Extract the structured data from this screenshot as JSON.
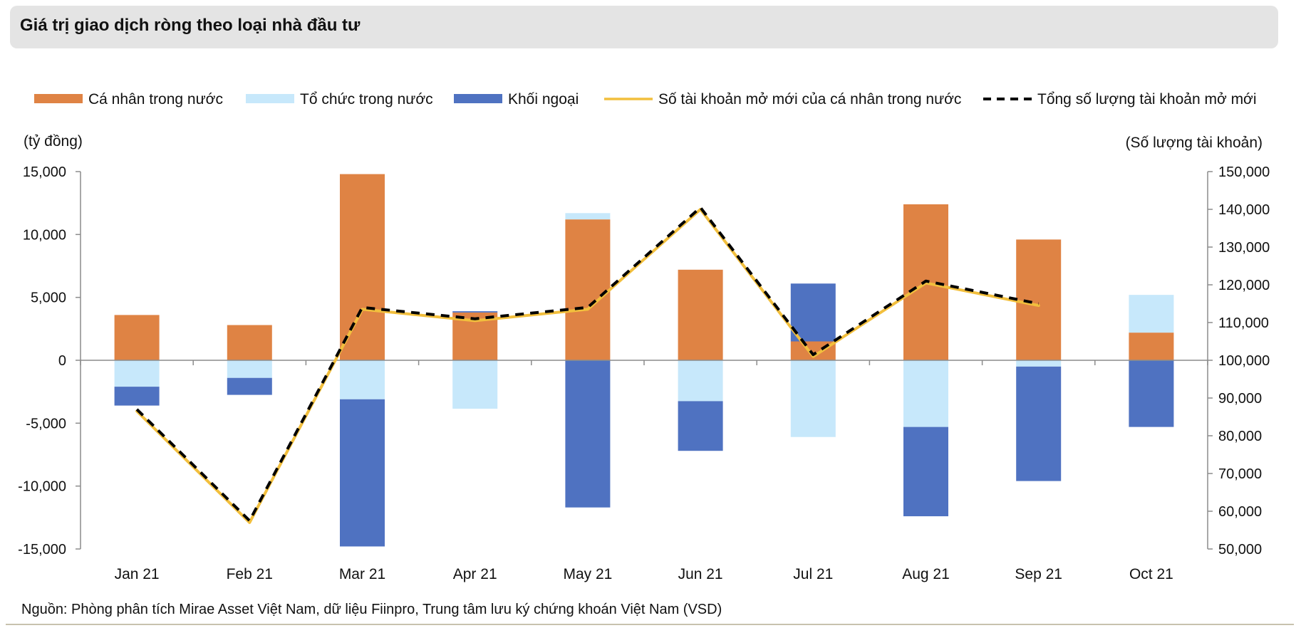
{
  "header": {
    "title": "Giá trị giao dịch ròng theo loại nhà đầu tư"
  },
  "source": "Nguồn: Phòng phân tích Mirae Asset Việt Nam, dữ liệu Fiinpro, Trung tâm lưu ký chứng khoán Việt Nam (VSD)",
  "colors": {
    "individual": "#df8344",
    "institution": "#c7e8fb",
    "foreign": "#4f72c1",
    "line_individual": "#f2bf3d",
    "line_total": "#000000",
    "axis": "#8c8c8c"
  },
  "chart_data": {
    "type": "bar",
    "stacked": true,
    "title": "Giá trị giao dịch ròng theo loại nhà đầu tư",
    "ylabel_left": "(tỷ đồng)",
    "ylabel_right": "(Số lượng tài khoản)",
    "ylim_left": [
      -15000,
      15000
    ],
    "ylim_right": [
      50000,
      150000
    ],
    "yticks_left": [
      15000,
      10000,
      5000,
      0,
      -5000,
      -10000,
      -15000
    ],
    "yticks_left_labels": [
      "15,000",
      "10,000",
      "5,000",
      "0",
      "-5,000",
      "-10,000",
      "-15,000"
    ],
    "yticks_right": [
      150000,
      140000,
      130000,
      120000,
      110000,
      100000,
      90000,
      80000,
      70000,
      60000,
      50000
    ],
    "yticks_right_labels": [
      "150,000",
      "140,000",
      "130,000",
      "120,000",
      "110,000",
      "100,000",
      "90,000",
      "80,000",
      "70,000",
      "60,000",
      "50,000"
    ],
    "categories": [
      "Jan 21",
      "Feb 21",
      "Mar 21",
      "Apr 21",
      "May 21",
      "Jun 21",
      "Jul 21",
      "Aug 21",
      "Sep 21",
      "Oct 21"
    ],
    "bar_series": [
      {
        "name": "Cá nhân trong nước",
        "key": "individual",
        "values": [
          3600,
          2800,
          14800,
          3800,
          11200,
          7200,
          1500,
          12400,
          9600,
          2200
        ]
      },
      {
        "name": "Tổ chức trong nước",
        "key": "institution",
        "values": [
          -2100,
          -1400,
          -3100,
          -3850,
          500,
          -3250,
          -6100,
          -5300,
          -500,
          3000
        ]
      },
      {
        "name": "Khối ngoại",
        "key": "foreign",
        "values": [
          -1500,
          -1350,
          -11700,
          100,
          -11700,
          -3950,
          4600,
          -7100,
          -9100,
          -5300
        ]
      }
    ],
    "line_series": [
      {
        "name": "Số tài khoản mở mới của cá nhân trong nước",
        "key": "line_individual",
        "axis": "right",
        "values": [
          86500,
          57000,
          113500,
          110500,
          113500,
          140000,
          101000,
          120500,
          114500,
          null
        ]
      },
      {
        "name": "Tổng số lượng tài khoản mở mới",
        "key": "line_total",
        "axis": "right",
        "dashed": true,
        "values": [
          87000,
          57500,
          114000,
          111000,
          114000,
          140500,
          101500,
          121000,
          115000,
          null
        ]
      }
    ],
    "legend_position": "top",
    "grid": false
  }
}
